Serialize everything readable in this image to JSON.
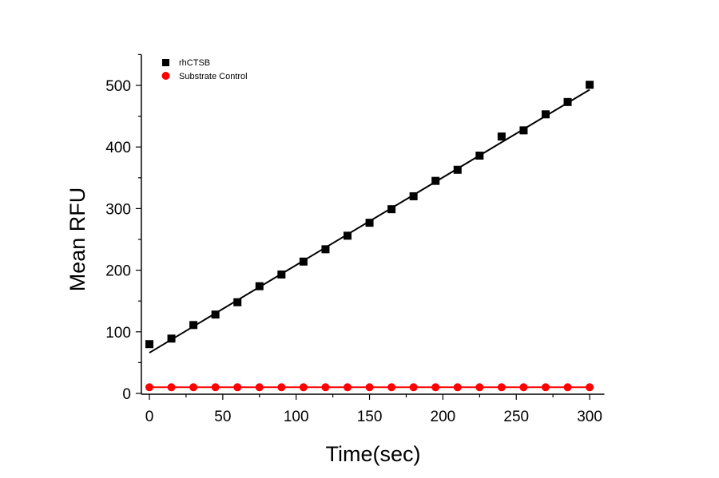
{
  "chart_data": {
    "type": "scatter",
    "title": "",
    "xlabel": "Time(sec)",
    "ylabel": "Mean RFU",
    "xlim": [
      -5.5,
      310
    ],
    "ylim": [
      0,
      550
    ],
    "xticks": [
      0,
      50,
      100,
      150,
      200,
      250,
      300
    ],
    "yticks": [
      0,
      100,
      200,
      300,
      400,
      500
    ],
    "grid": false,
    "legend_position": "top-left",
    "x": [
      0,
      15,
      30,
      45,
      60,
      75,
      90,
      105,
      120,
      135,
      150,
      165,
      180,
      195,
      210,
      225,
      240,
      255,
      270,
      285,
      300
    ],
    "series": [
      {
        "name": "rhCTSB",
        "marker": "square",
        "color": "#000000",
        "values": [
          80,
          89,
          111,
          128,
          148,
          174,
          193,
          214,
          234,
          256,
          277,
          299,
          320,
          345,
          363,
          386,
          417,
          427,
          453,
          473,
          501
        ],
        "fit_line": {
          "x": [
            0,
            300
          ],
          "y": [
            66,
            493
          ]
        }
      },
      {
        "name": "Substrate Control",
        "marker": "circle",
        "color": "#ff0000",
        "values": [
          10,
          10,
          10,
          10,
          10,
          10,
          10,
          10,
          10,
          10,
          10,
          10,
          10,
          10,
          10,
          10,
          10,
          10,
          10,
          10,
          10
        ],
        "connected": true
      }
    ]
  }
}
